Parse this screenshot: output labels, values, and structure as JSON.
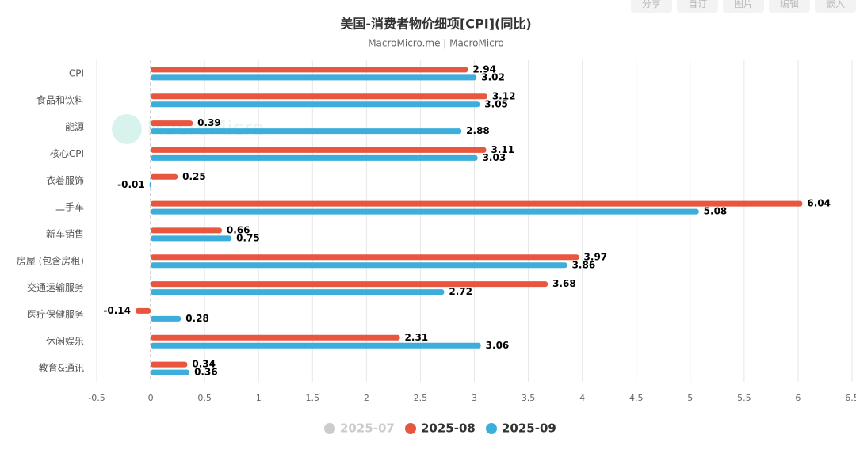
{
  "toolbar": [
    "分享",
    "自订",
    "图片",
    "编辑",
    "嵌入"
  ],
  "watermark": "MacroMicro",
  "chart_data": {
    "type": "bar",
    "orientation": "horizontal",
    "title": "美国-消费者物价细项[CPI](同比)",
    "subtitle": "MacroMicro.me | MacroMicro",
    "categories": [
      "CPI",
      "食品和饮料",
      "能源",
      "核心CPI",
      "衣着服饰",
      "二手车",
      "新车销售",
      "房屋 (包含房租)",
      "交通运输服务",
      "医疗保健服务",
      "休闲娱乐",
      "教育&通讯"
    ],
    "series": [
      {
        "name": "2025-07",
        "color": "#cccccc",
        "visible": false,
        "values": [
          null,
          null,
          null,
          null,
          null,
          null,
          null,
          null,
          null,
          null,
          null,
          null
        ]
      },
      {
        "name": "2025-08",
        "color": "#e8563f",
        "visible": true,
        "values": [
          2.94,
          3.12,
          0.39,
          3.11,
          0.25,
          6.04,
          0.66,
          3.97,
          3.68,
          -0.14,
          2.31,
          0.34
        ]
      },
      {
        "name": "2025-09",
        "color": "#3daedb",
        "visible": true,
        "values": [
          3.02,
          3.05,
          2.88,
          3.03,
          -0.01,
          5.08,
          0.75,
          3.86,
          2.72,
          0.28,
          3.06,
          0.36
        ]
      }
    ],
    "xlim": [
      -0.5,
      6.5
    ],
    "xticks": [
      -0.5,
      0,
      0.5,
      1,
      1.5,
      2,
      2.5,
      3,
      3.5,
      4,
      4.5,
      5,
      5.5,
      6,
      6.5
    ],
    "grid": true,
    "legend": "bottom"
  }
}
